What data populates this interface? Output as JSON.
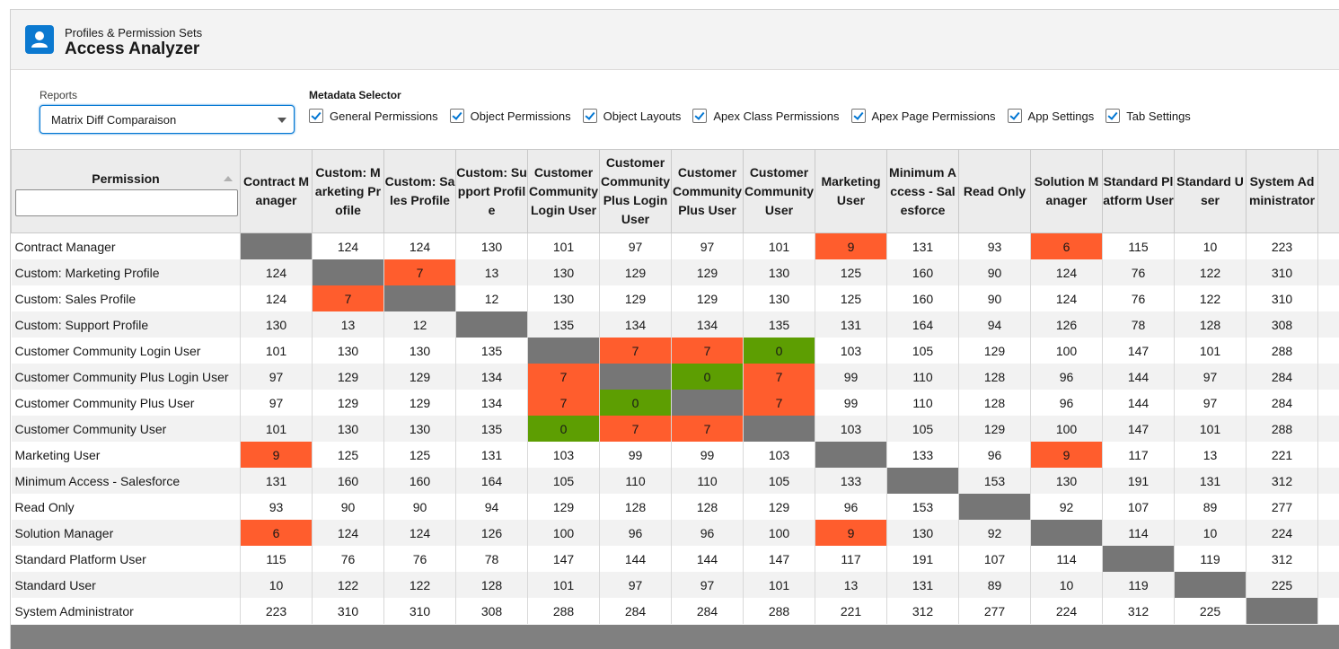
{
  "header": {
    "subtitle": "Profiles & Permission Sets",
    "title": "Access Analyzer"
  },
  "controls": {
    "reports_label": "Reports",
    "reports_value": "Matrix Diff Comparaison",
    "metadata_label": "Metadata Selector",
    "checkboxes": [
      {
        "label": "General Permissions",
        "checked": true
      },
      {
        "label": "Object Permissions",
        "checked": true
      },
      {
        "label": "Object Layouts",
        "checked": true
      },
      {
        "label": "Apex Class Permissions",
        "checked": true
      },
      {
        "label": "Apex Page Permissions",
        "checked": true
      },
      {
        "label": "App Settings",
        "checked": true
      },
      {
        "label": "Tab Settings",
        "checked": true
      }
    ]
  },
  "colors": {
    "self": "#767676",
    "high_diff": "#ff5d2d",
    "zero_diff": "#5d9e02",
    "accent": "#0176d3"
  },
  "grid": {
    "first_column_header": "Permission",
    "filter_value": "",
    "columns": [
      "Contract Manager",
      "Custom: Marketing Profile",
      "Custom: Sales Profile",
      "Custom: Support Profile",
      "Customer Community Login User",
      "Customer Community Plus Login User",
      "Customer Community Plus User",
      "Customer Community User",
      "Marketing User",
      "Minimum Access - Salesforce",
      "Read Only",
      "Solution Manager",
      "Standard Platform User",
      "Standard User",
      "System Administrator"
    ],
    "rows": [
      {
        "name": "Contract Manager",
        "values": [
          "",
          124,
          124,
          130,
          101,
          97,
          97,
          101,
          9,
          131,
          93,
          6,
          115,
          10,
          223
        ],
        "hl": [
          "self",
          "",
          "",
          "",
          "",
          "",
          "",
          "",
          "high",
          "",
          "",
          "high",
          "",
          "",
          ""
        ]
      },
      {
        "name": "Custom: Marketing Profile",
        "values": [
          124,
          "",
          7,
          13,
          130,
          129,
          129,
          130,
          125,
          160,
          90,
          124,
          76,
          122,
          310
        ],
        "hl": [
          "",
          "self",
          "high",
          "",
          "",
          "",
          "",
          "",
          "",
          "",
          "",
          "",
          "",
          "",
          ""
        ]
      },
      {
        "name": "Custom: Sales Profile",
        "values": [
          124,
          7,
          "",
          12,
          130,
          129,
          129,
          130,
          125,
          160,
          90,
          124,
          76,
          122,
          310
        ],
        "hl": [
          "",
          "high",
          "self",
          "",
          "",
          "",
          "",
          "",
          "",
          "",
          "",
          "",
          "",
          "",
          ""
        ]
      },
      {
        "name": "Custom: Support Profile",
        "values": [
          130,
          13,
          12,
          "",
          135,
          134,
          134,
          135,
          131,
          164,
          94,
          126,
          78,
          128,
          308
        ],
        "hl": [
          "",
          "",
          "",
          "self",
          "",
          "",
          "",
          "",
          "",
          "",
          "",
          "",
          "",
          "",
          ""
        ]
      },
      {
        "name": "Customer Community Login User",
        "values": [
          101,
          130,
          130,
          135,
          "",
          7,
          7,
          0,
          103,
          105,
          129,
          100,
          147,
          101,
          288
        ],
        "hl": [
          "",
          "",
          "",
          "",
          "self",
          "high",
          "high",
          "zero",
          "",
          "",
          "",
          "",
          "",
          "",
          ""
        ]
      },
      {
        "name": "Customer Community Plus Login User",
        "values": [
          97,
          129,
          129,
          134,
          7,
          "",
          0,
          7,
          99,
          110,
          128,
          96,
          144,
          97,
          284
        ],
        "hl": [
          "",
          "",
          "",
          "",
          "high",
          "self",
          "zero",
          "high",
          "",
          "",
          "",
          "",
          "",
          "",
          ""
        ]
      },
      {
        "name": "Customer Community Plus User",
        "values": [
          97,
          129,
          129,
          134,
          7,
          0,
          "",
          7,
          99,
          110,
          128,
          96,
          144,
          97,
          284
        ],
        "hl": [
          "",
          "",
          "",
          "",
          "high",
          "zero",
          "self",
          "high",
          "",
          "",
          "",
          "",
          "",
          "",
          ""
        ]
      },
      {
        "name": "Customer Community User",
        "values": [
          101,
          130,
          130,
          135,
          0,
          7,
          7,
          "",
          103,
          105,
          129,
          100,
          147,
          101,
          288
        ],
        "hl": [
          "",
          "",
          "",
          "",
          "zero",
          "high",
          "high",
          "self",
          "",
          "",
          "",
          "",
          "",
          "",
          ""
        ]
      },
      {
        "name": "Marketing User",
        "values": [
          9,
          125,
          125,
          131,
          103,
          99,
          99,
          103,
          "",
          133,
          96,
          9,
          117,
          13,
          221
        ],
        "hl": [
          "high",
          "",
          "",
          "",
          "",
          "",
          "",
          "",
          "self",
          "",
          "",
          "high",
          "",
          "",
          ""
        ]
      },
      {
        "name": "Minimum Access - Salesforce",
        "values": [
          131,
          160,
          160,
          164,
          105,
          110,
          110,
          105,
          133,
          "",
          153,
          130,
          191,
          131,
          312
        ],
        "hl": [
          "",
          "",
          "",
          "",
          "",
          "",
          "",
          "",
          "",
          "self",
          "",
          "",
          "",
          "",
          ""
        ]
      },
      {
        "name": "Read Only",
        "values": [
          93,
          90,
          90,
          94,
          129,
          128,
          128,
          129,
          96,
          153,
          "",
          92,
          107,
          89,
          277
        ],
        "hl": [
          "",
          "",
          "",
          "",
          "",
          "",
          "",
          "",
          "",
          "",
          "self",
          "",
          "",
          "",
          ""
        ]
      },
      {
        "name": "Solution Manager",
        "values": [
          6,
          124,
          124,
          126,
          100,
          96,
          96,
          100,
          9,
          130,
          92,
          "",
          114,
          10,
          224
        ],
        "hl": [
          "high",
          "",
          "",
          "",
          "",
          "",
          "",
          "",
          "high",
          "",
          "",
          "self",
          "",
          "",
          ""
        ]
      },
      {
        "name": "Standard Platform User",
        "values": [
          115,
          76,
          76,
          78,
          147,
          144,
          144,
          147,
          117,
          191,
          107,
          114,
          "",
          119,
          312
        ],
        "hl": [
          "",
          "",
          "",
          "",
          "",
          "",
          "",
          "",
          "",
          "",
          "",
          "",
          "self",
          "",
          ""
        ]
      },
      {
        "name": "Standard User",
        "values": [
          10,
          122,
          122,
          128,
          101,
          97,
          97,
          101,
          13,
          131,
          89,
          10,
          119,
          "",
          225
        ],
        "hl": [
          "",
          "",
          "",
          "",
          "",
          "",
          "",
          "",
          "",
          "",
          "",
          "",
          "",
          "self",
          ""
        ]
      },
      {
        "name": "System Administrator",
        "values": [
          223,
          310,
          310,
          308,
          288,
          284,
          284,
          288,
          221,
          312,
          277,
          224,
          312,
          225,
          ""
        ],
        "hl": [
          "",
          "",
          "",
          "",
          "",
          "",
          "",
          "",
          "",
          "",
          "",
          "",
          "",
          "",
          "self"
        ]
      }
    ]
  }
}
